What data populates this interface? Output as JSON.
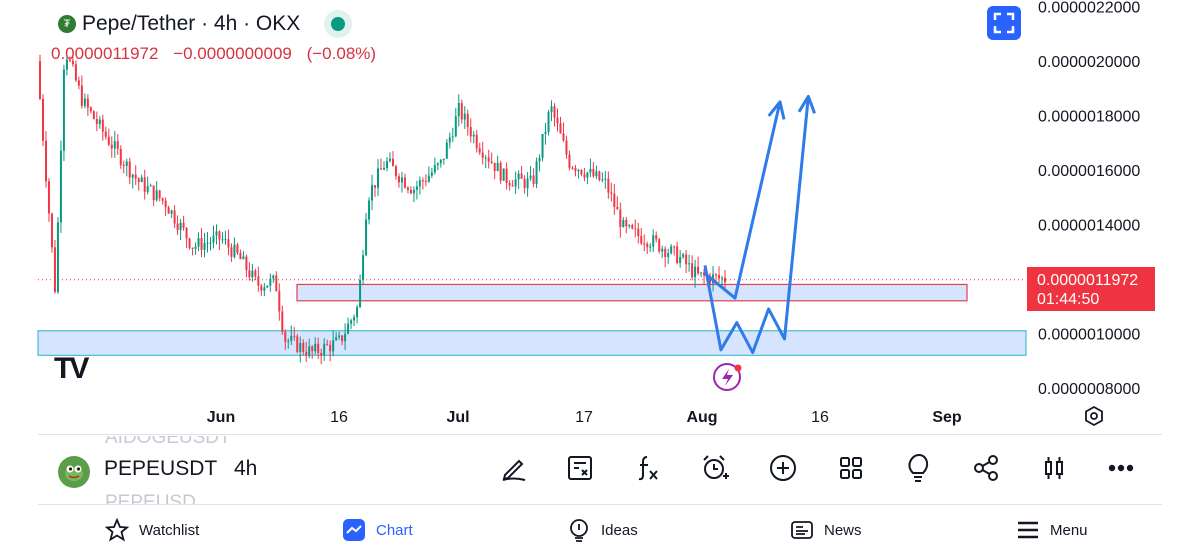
{
  "header": {
    "title": "Pepe/Tether · 4h · OKX",
    "open_price": "0.0000011972",
    "change_abs": "−0.0000000009",
    "change_pct": "(−0.08%)"
  },
  "price_axis": {
    "labels": [
      "0.0000022000",
      "0.0000020000",
      "0.0000018000",
      "0.0000016000",
      "0.0000014000",
      "0.0000010000",
      "0.0000008000"
    ],
    "current_price": "0.0000011972",
    "countdown": "01:44:50"
  },
  "time_axis": {
    "labels": [
      "Jun",
      "16",
      "Jul",
      "17",
      "Aug",
      "16",
      "Sep"
    ]
  },
  "colors": {
    "up": "#089981",
    "down": "#f23645",
    "accent": "#2962ff",
    "zone_fill": "#d6e4ff",
    "projection": "#2f7bea"
  },
  "chart_data": {
    "type": "candlestick",
    "symbol": "PEPEUSDT",
    "interval": "4h",
    "exchange": "OKX",
    "last_price": 1.1972e-06,
    "ylim": [
      7.6e-07,
      2.2e-06
    ],
    "zones": [
      {
        "from": 1.12e-06,
        "to": 1.18e-06
      },
      {
        "from": 9.2e-07,
        "to": 1.01e-06
      }
    ],
    "price_path": [
      [
        0.0,
        2e-06
      ],
      [
        0.02,
        1.15e-06
      ],
      [
        0.03,
        2.05e-06
      ],
      [
        0.05,
        1.85e-06
      ],
      [
        0.08,
        1.7e-06
      ],
      [
        0.11,
        1.56e-06
      ],
      [
        0.14,
        1.48e-06
      ],
      [
        0.17,
        1.32e-06
      ],
      [
        0.2,
        1.35e-06
      ],
      [
        0.22,
        1.28e-06
      ],
      [
        0.24,
        1.18e-06
      ],
      [
        0.26,
        1.19e-06
      ],
      [
        0.27,
        9.8e-07
      ],
      [
        0.3,
        9.3e-07
      ],
      [
        0.33,
        9.7e-07
      ],
      [
        0.35,
        1.1e-06
      ],
      [
        0.36,
        1.5e-06
      ],
      [
        0.38,
        1.63e-06
      ],
      [
        0.41,
        1.53e-06
      ],
      [
        0.44,
        1.62e-06
      ],
      [
        0.46,
        1.82e-06
      ],
      [
        0.48,
        1.7e-06
      ],
      [
        0.51,
        1.57e-06
      ],
      [
        0.54,
        1.55e-06
      ],
      [
        0.56,
        1.83e-06
      ],
      [
        0.58,
        1.63e-06
      ],
      [
        0.62,
        1.55e-06
      ],
      [
        0.64,
        1.38e-06
      ],
      [
        0.67,
        1.34e-06
      ],
      [
        0.7,
        1.28e-06
      ],
      [
        0.72,
        1.21e-06
      ],
      [
        0.75,
        1.2e-06
      ]
    ],
    "projections": [
      {
        "path": [
          [
            0.0,
            1.22e-06
          ],
          [
            0.1,
            1.13e-06
          ],
          [
            0.25,
            1.85e-06
          ]
        ]
      },
      {
        "path": [
          [
            0.0,
            1.25e-06
          ],
          [
            0.1,
            9.4e-07
          ],
          [
            0.2,
            1.04e-06
          ],
          [
            0.3,
            9.3e-07
          ],
          [
            0.4,
            1.09e-06
          ],
          [
            0.5,
            9.8e-07
          ],
          [
            0.65,
            1.87e-06
          ]
        ]
      }
    ]
  },
  "symbol_bar": {
    "ghost_above": "AIDOGEUSDT",
    "symbol": "PEPEUSDT",
    "interval": "4h",
    "ghost_below": "PEPEUSD",
    "tools": [
      "draw-icon",
      "object-tree-icon",
      "indicators-icon",
      "alert-icon",
      "add-icon",
      "layouts-icon",
      "ideas-icon",
      "share-icon",
      "chart-type-icon",
      "more-icon"
    ]
  },
  "bottom_nav": {
    "items": [
      {
        "label": "Watchlist",
        "icon": "star-icon"
      },
      {
        "label": "Chart",
        "icon": "chart-icon"
      },
      {
        "label": "Ideas",
        "icon": "bulb-icon"
      },
      {
        "label": "News",
        "icon": "news-icon"
      },
      {
        "label": "Menu",
        "icon": "menu-icon"
      }
    ]
  }
}
